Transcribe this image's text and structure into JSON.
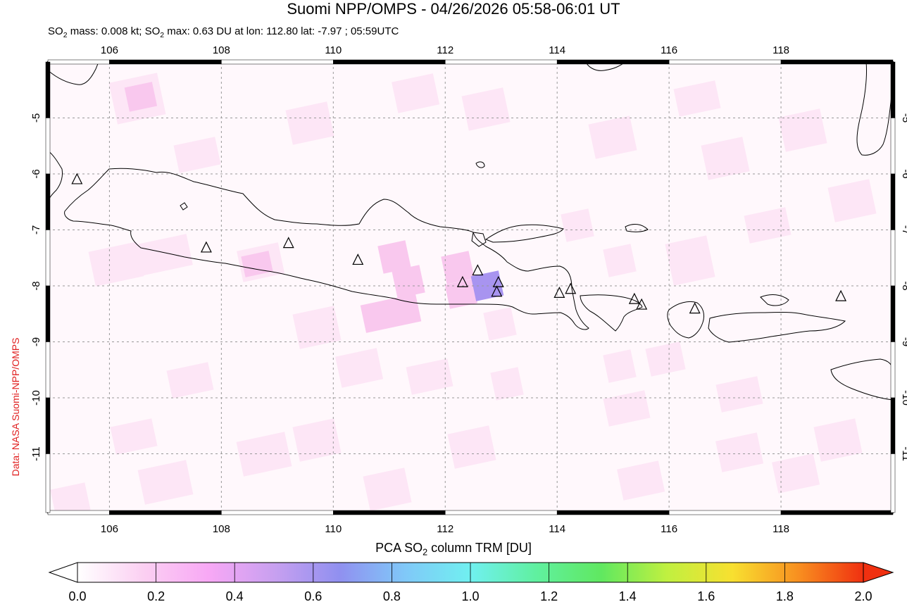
{
  "title": "Suomi NPP/OMPS - 04/26/2026 05:58-06:01 UT",
  "subtitle": {
    "prefix": "SO",
    "sub1": "2",
    "mid1": " mass: 0.008 kt; SO",
    "sub2": "2",
    "rest": " max: 0.63 DU at lon: 112.80 lat: -7.97 ; 05:59UTC"
  },
  "credit": "Data: NASA Suomi-NPP/OMPS",
  "map": {
    "lon_range": [
      104.9,
      120.0
    ],
    "lat_range": [
      -12.05,
      -4.0
    ],
    "lon_ticks": [
      "106",
      "108",
      "110",
      "112",
      "114",
      "116",
      "118"
    ],
    "lon_tick_values": [
      106,
      108,
      110,
      112,
      114,
      116,
      118
    ],
    "lat_ticks": [
      "-5",
      "-6",
      "-7",
      "-8",
      "-9",
      "-10",
      "-11"
    ],
    "lat_tick_values": [
      -5,
      -6,
      -7,
      -8,
      -9,
      -10,
      -11
    ],
    "grid": true,
    "volcano_marker": "triangle-icon",
    "volcanoes": [
      {
        "lon": 105.42,
        "lat": -6.1
      },
      {
        "lon": 107.73,
        "lat": -7.32
      },
      {
        "lon": 109.2,
        "lat": -7.24
      },
      {
        "lon": 110.44,
        "lat": -7.54
      },
      {
        "lon": 112.31,
        "lat": -7.94
      },
      {
        "lon": 112.58,
        "lat": -7.73
      },
      {
        "lon": 112.95,
        "lat": -7.94
      },
      {
        "lon": 112.92,
        "lat": -8.11
      },
      {
        "lon": 114.04,
        "lat": -8.13
      },
      {
        "lon": 114.24,
        "lat": -8.06
      },
      {
        "lon": 115.38,
        "lat": -8.24
      },
      {
        "lon": 115.51,
        "lat": -8.34
      },
      {
        "lon": 116.46,
        "lat": -8.41
      },
      {
        "lon": 119.07,
        "lat": -8.19
      }
    ],
    "so2_max_point": {
      "lon": 112.8,
      "lat": -7.97,
      "value": 0.63
    }
  },
  "colorbar": {
    "label_prefix": "PCA SO",
    "label_sub": "2",
    "label_suffix": " column TRM [DU]",
    "ticks": [
      "0.0",
      "0.2",
      "0.4",
      "0.6",
      "0.8",
      "1.0",
      "1.2",
      "1.4",
      "1.6",
      "1.8",
      "2.0"
    ],
    "range": [
      0.0,
      2.0
    ],
    "colors": [
      "#ffffff",
      "#fbd0f2",
      "#f8a8f5",
      "#c8a0f0",
      "#9090f0",
      "#80c8f8",
      "#70f0f0",
      "#60f0a0",
      "#60e860",
      "#c0f040",
      "#f8e030",
      "#f89020",
      "#f03010"
    ]
  }
}
